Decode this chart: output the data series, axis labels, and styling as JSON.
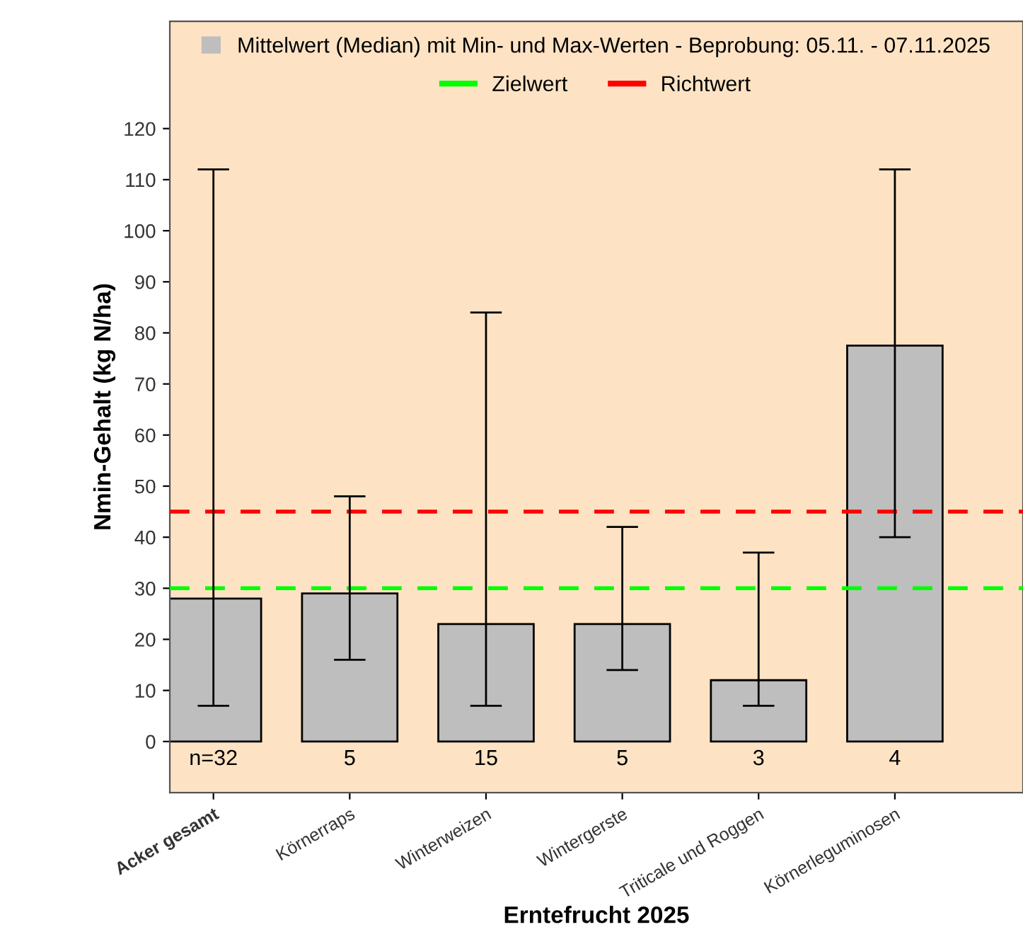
{
  "chart_data": {
    "type": "bar",
    "xlabel": "Erntefrucht 2025",
    "ylabel": "Nmin-Gehalt (kg N/ha)",
    "categories": [
      "Acker gesamt",
      "Körnerraps",
      "Winterweizen",
      "Wintergerste",
      "Triticale und Roggen",
      "Körnerleguminosen"
    ],
    "series": [
      {
        "name": "Mittelwert (Median) mit Min- und Max-Werten - Beprobung: 05.11. - 07.11.2025",
        "color": "#bebebe",
        "values": [
          28,
          29,
          23,
          23,
          12,
          77.5
        ],
        "errors": [
          [
            7,
            112
          ],
          [
            16,
            48
          ],
          [
            7,
            84
          ],
          [
            14,
            42
          ],
          [
            7,
            37
          ],
          [
            40,
            112
          ]
        ]
      }
    ],
    "ref_lines": [
      {
        "axis": "y",
        "value": 30,
        "label": "Zielwert",
        "color": "#00ff00",
        "line_style": "dashed"
      },
      {
        "axis": "y",
        "value": 45,
        "label": "Richtwert",
        "color": "#ff0000",
        "line_style": "dashed"
      }
    ],
    "annotations": [
      "n=32",
      "5",
      "15",
      "5",
      "3",
      "4"
    ],
    "ylim": [
      -10,
      141
    ],
    "yticks": [
      0,
      10,
      20,
      30,
      40,
      50,
      60,
      70,
      80,
      90,
      100,
      110,
      120
    ],
    "grid": false,
    "legend": "top"
  }
}
